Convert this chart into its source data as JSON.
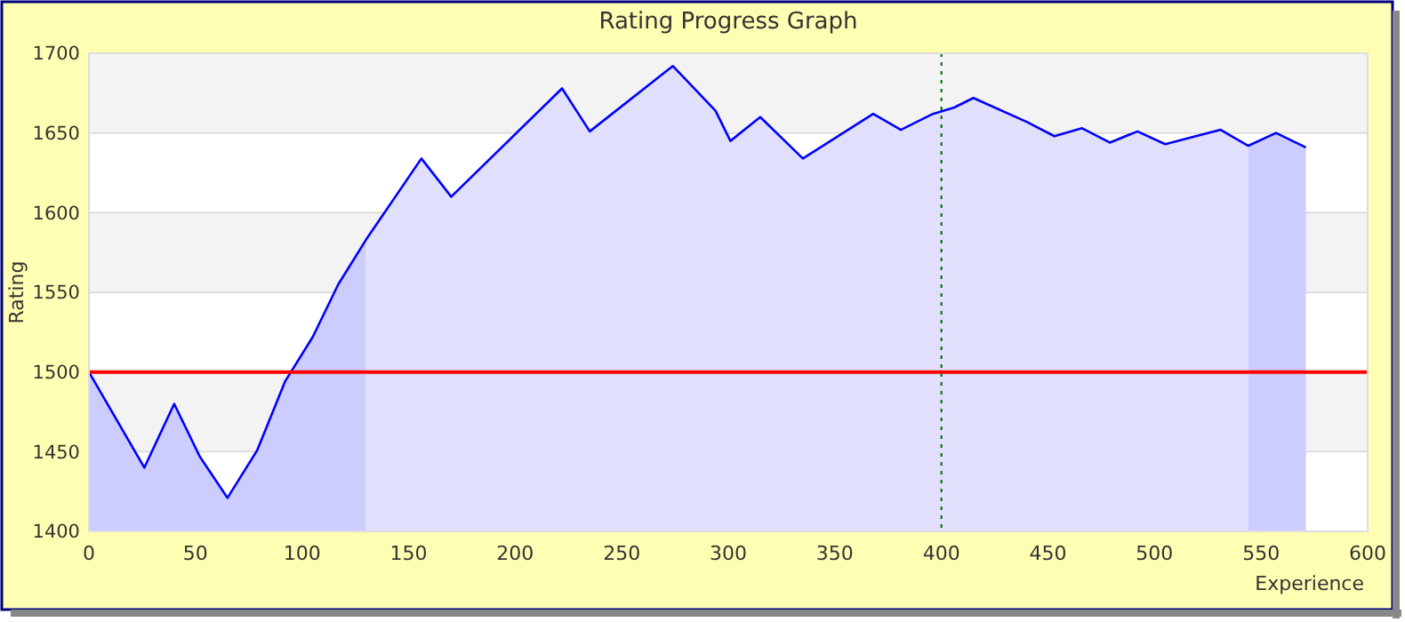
{
  "chart_data": {
    "type": "area",
    "title": "Rating Progress Graph",
    "xlabel": "Experience",
    "ylabel": "Rating",
    "xlim": [
      0,
      600
    ],
    "xticks": [
      0,
      50,
      100,
      150,
      200,
      250,
      300,
      350,
      400,
      450,
      500,
      550,
      600
    ],
    "ylim": [
      1400,
      1700
    ],
    "yticks": [
      1400,
      1450,
      1500,
      1550,
      1600,
      1650,
      1700
    ],
    "grid": "y",
    "series": [
      {
        "color": "#ccccff",
        "x": [
          0,
          26,
          40,
          52,
          65,
          79,
          92,
          105,
          117,
          130
        ],
        "values": [
          1500,
          1440,
          1480,
          1447,
          1421,
          1451,
          1494,
          1522,
          1555,
          1583
        ]
      },
      {
        "color": "#e0e0fc",
        "x": [
          130,
          156,
          170,
          222,
          235,
          274,
          294,
          301,
          315,
          335,
          368,
          381,
          396,
          406,
          415,
          440,
          453,
          466,
          479,
          492,
          505,
          531,
          544
        ],
        "values": [
          1583,
          1634,
          1610,
          1678,
          1651,
          1692,
          1664,
          1645,
          1660,
          1634,
          1662,
          1652,
          1662,
          1666,
          1672,
          1657,
          1648,
          1653,
          1644,
          1651,
          1643,
          1652,
          1642
        ]
      },
      {
        "color": "#ccccff",
        "x": [
          544,
          557,
          571
        ],
        "values": [
          1642,
          1650,
          1641
        ]
      },
      {
        "type": "line",
        "color": "#0000ff",
        "x": [
          0,
          26,
          40,
          52,
          65,
          79,
          92,
          105,
          117,
          130,
          156,
          170,
          222,
          235,
          274,
          294,
          301,
          315,
          335,
          368,
          381,
          396,
          406,
          415,
          440,
          453,
          466,
          479,
          492,
          505,
          531,
          544,
          557,
          571
        ],
        "values": [
          1500,
          1440,
          1480,
          1447,
          1421,
          1451,
          1494,
          1522,
          1555,
          1583,
          1634,
          1610,
          1678,
          1651,
          1692,
          1664,
          1645,
          1660,
          1634,
          1662,
          1652,
          1662,
          1666,
          1672,
          1657,
          1648,
          1653,
          1644,
          1651,
          1643,
          1652,
          1642,
          1650,
          1641
        ]
      }
    ],
    "ref_lines": [
      {
        "axis": "y",
        "value": 1500,
        "color": "#ff0000",
        "line_style": "solid"
      },
      {
        "axis": "x",
        "value": 400,
        "color": "#006600",
        "line_style": "dotted"
      }
    ]
  }
}
